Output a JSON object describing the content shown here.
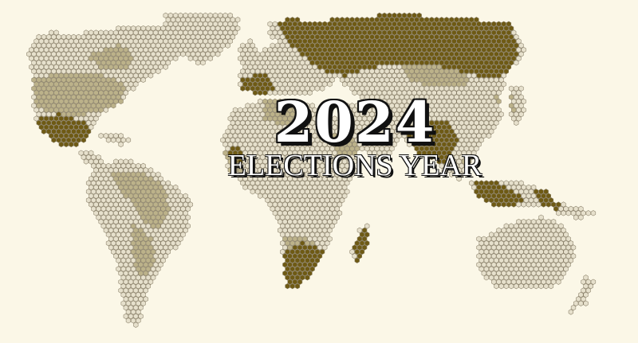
{
  "title": {
    "year": "2024",
    "subtitle": "ELECTIONS YEAR"
  },
  "colors": {
    "background": "#fbf7e7",
    "no_election": "#e6e0cc",
    "election_other": "#bcb28a",
    "election_2024": "#6e5a14",
    "hex_stroke": "#8a806a"
  },
  "map": {
    "style": "hexagonal-tile world map",
    "categories": [
      "no_election",
      "election_other",
      "election_2024"
    ]
  }
}
